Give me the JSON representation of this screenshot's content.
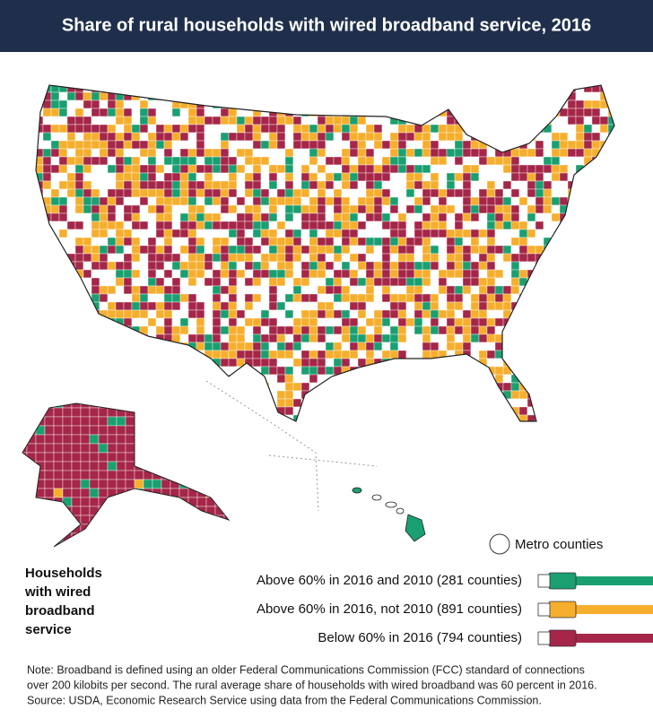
{
  "header": {
    "title": "Share of rural households with wired broadband service, 2016"
  },
  "map": {
    "metro_label": "Metro counties"
  },
  "legend": {
    "title_lines": [
      "Households",
      "with wired",
      "broadband",
      "service"
    ],
    "items": [
      {
        "label": "Above 60% in 2016 and 2010 (281 counties)",
        "color": "#1a9f70"
      },
      {
        "label": "Above 60% in 2016, not 2010 (891 counties)",
        "color": "#f6ae2d"
      },
      {
        "label": "Below 60% in 2016 (794 counties)",
        "color": "#a52648"
      }
    ]
  },
  "note": {
    "lines": [
      "Note: Broadband is defined using an older Federal Communications Commission (FCC) standard of connections",
      "over 200 kilobits per second. The rural average share of households with wired broadband was 60 percent in 2016.",
      "Source: USDA, Economic Research Service using data from the Federal Communications Commission."
    ]
  }
}
